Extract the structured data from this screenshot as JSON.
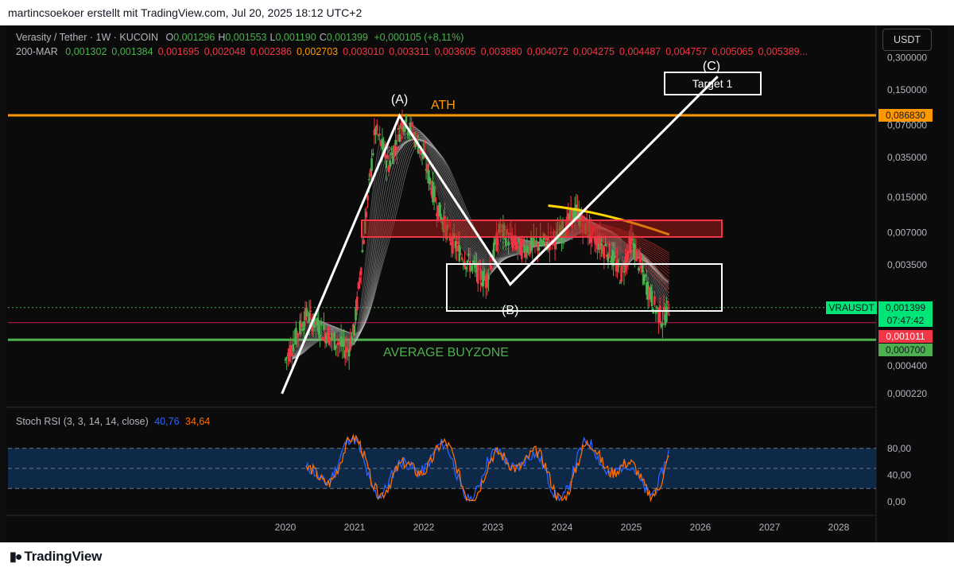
{
  "header": {
    "attribution": "martincsoekoer erstellt mit TradingView.com, Jul 20, 2025 18:12 UTC+2"
  },
  "legend": {
    "symbol": "Verasity / Tether · 1W · KUCOIN",
    "ohlc": [
      {
        "k": "O",
        "v": "0,001296"
      },
      {
        "k": "H",
        "v": "0,001553"
      },
      {
        "k": "L",
        "v": "0,001190"
      },
      {
        "k": "C",
        "v": "0,001399"
      }
    ],
    "change": "+0,000105 (+8,11%)",
    "ribbon_label": "200-MAR",
    "ribbon_values": [
      "0,001302",
      "0,001384",
      "0,001695",
      "0,002048",
      "0,002386",
      "0,002703",
      "0,003010",
      "0,003311",
      "0,003605",
      "0,003880",
      "0,004072",
      "0,004275",
      "0,004487",
      "0,004757",
      "0,005065",
      "0,005389..."
    ],
    "ribbon_colors": [
      "#4caf50",
      "#4caf50",
      "#f23645",
      "#f23645",
      "#f23645",
      "#ff9800",
      "#f23645",
      "#f23645",
      "#f23645",
      "#f23645",
      "#f23645",
      "#f23645",
      "#f23645",
      "#f23645",
      "#f23645",
      "#f23645"
    ]
  },
  "currency_button": "USDT",
  "price_axis": [
    "0,300000",
    "0,150000",
    "0,070000",
    "0,035000",
    "0,015000",
    "0,007000",
    "0,003500",
    "0,000400",
    "0,000220"
  ],
  "price_tags": {
    "ath": "0,086830",
    "symbol": "VRAUSDT",
    "last": "0,001399",
    "countdown": "07:47:42",
    "red_level": "0,001011",
    "green_level": "0,000700"
  },
  "annotations": {
    "wave_a": "(A)",
    "wave_b": "(B)",
    "wave_c": "(C)",
    "ath": "ATH",
    "target": "Target 1",
    "buyzone": "AVERAGE BUYZONE"
  },
  "stoch": {
    "title": "Stoch RSI (3, 3, 14, 14, close)",
    "k_value": "40,76",
    "d_value": "34,64",
    "k_color": "#2962ff",
    "d_color": "#ff6d00",
    "axis": [
      "80,00",
      "40,00",
      "0,00"
    ]
  },
  "time_axis": [
    "2020",
    "2021",
    "2022",
    "2023",
    "2024",
    "2025",
    "2026",
    "2027",
    "2028"
  ],
  "footer": {
    "brand": "TradingView"
  },
  "chart_data": {
    "type": "line",
    "title": "Verasity / Tether · 1W · KUCOIN",
    "scale": "log",
    "x": [
      "2020",
      "2021",
      "2022",
      "2023",
      "2024",
      "2025",
      "2026",
      "2027",
      "2028"
    ],
    "series": [
      {
        "name": "VRAUSDT",
        "x": [
          2020.0,
          2020.3,
          2020.6,
          2020.9,
          2021.0,
          2021.15,
          2021.3,
          2021.5,
          2021.7,
          2021.85,
          2022.0,
          2022.2,
          2022.4,
          2022.6,
          2022.9,
          2023.1,
          2023.4,
          2023.7,
          2023.95,
          2024.2,
          2024.4,
          2024.7,
          2024.85,
          2025.0,
          2025.2,
          2025.35,
          2025.45,
          2025.55
        ],
        "values": [
          0.00045,
          0.0012,
          0.0008,
          0.00055,
          0.0009,
          0.008,
          0.065,
          0.03,
          0.08,
          0.06,
          0.035,
          0.012,
          0.006,
          0.004,
          0.0025,
          0.0075,
          0.005,
          0.0055,
          0.0065,
          0.011,
          0.007,
          0.0045,
          0.0028,
          0.006,
          0.0025,
          0.0014,
          0.0011,
          0.0014
        ]
      }
    ],
    "horizontal_levels": [
      0.08683,
      0.001011,
      0.0007
    ],
    "wave_points": {
      "A": [
        2021.65,
        0.086
      ],
      "B": [
        2023.25,
        0.0023
      ],
      "C": [
        2026.25,
        0.2
      ]
    },
    "stoch_rsi": {
      "k_last": 40.76,
      "d_last": 34.64,
      "bands": [
        80,
        40,
        20
      ]
    },
    "legend_position": "top-left",
    "grid": false
  }
}
